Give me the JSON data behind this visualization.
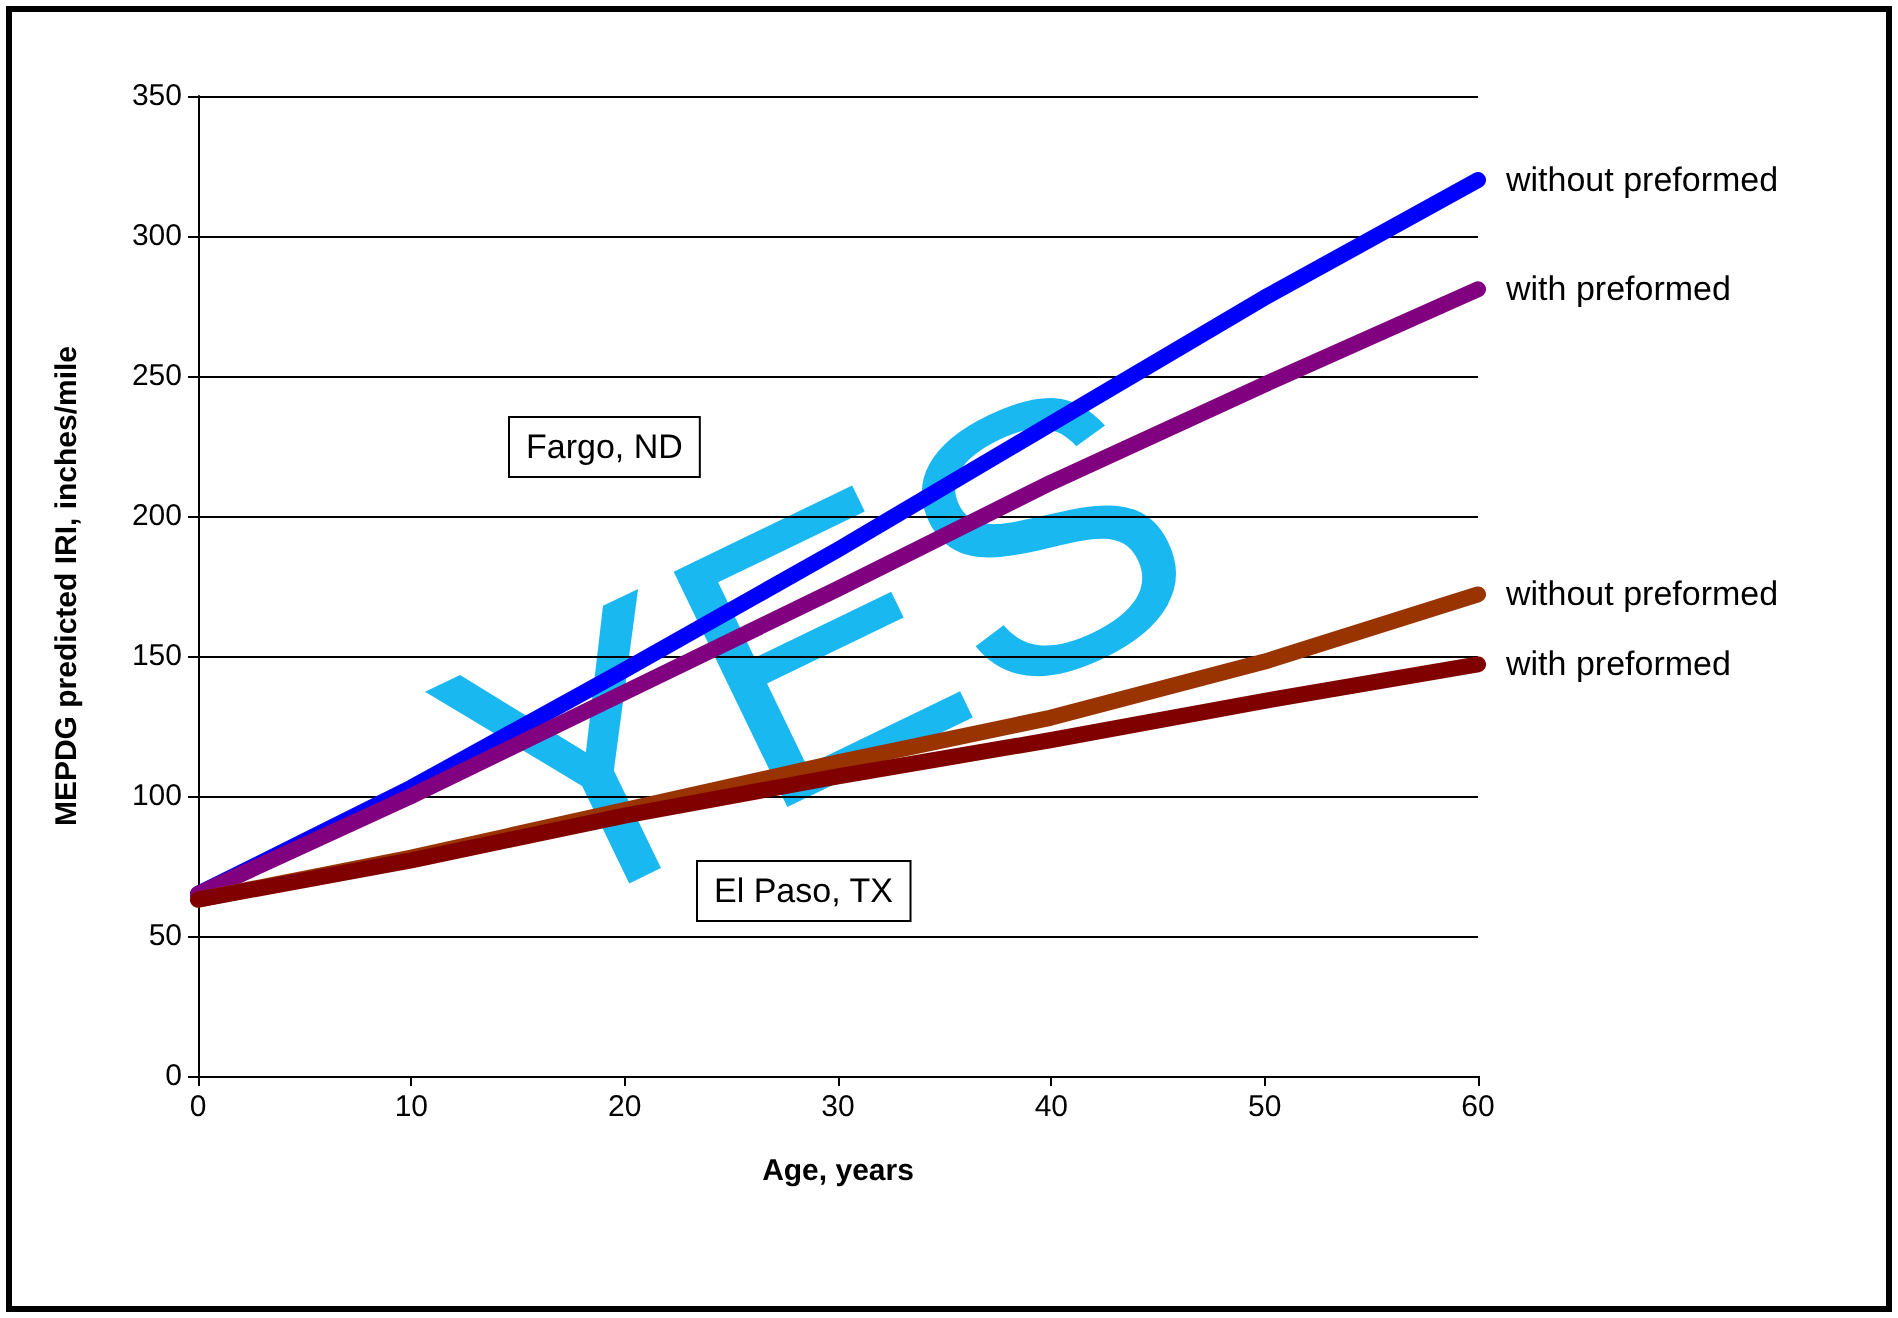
{
  "chart_data": {
    "type": "line",
    "xlabel": "Age, years",
    "ylabel": "MEPDG predicted IRI, inches/mile",
    "x": [
      0,
      10,
      20,
      30,
      40,
      50,
      60
    ],
    "series": [
      {
        "name": "without preformed",
        "color": "#0000ff",
        "values": [
          65,
          103,
          145,
          188,
          233,
          278,
          320
        ]
      },
      {
        "name": "with preformed",
        "color": "#800080",
        "values": [
          65,
          100,
          137,
          174,
          212,
          247,
          281
        ]
      },
      {
        "name": "without preformed",
        "color": "#993300",
        "values": [
          63,
          78,
          95,
          112,
          128,
          148,
          172
        ]
      },
      {
        "name": "with preformed",
        "color": "#800000",
        "values": [
          63,
          77,
          93,
          107,
          120,
          134,
          147
        ]
      }
    ],
    "annotations": [
      "Fargo, ND",
      "El Paso, TX",
      "YES"
    ],
    "xlim": [
      0,
      60
    ],
    "xticks": [
      0,
      10,
      20,
      30,
      40,
      50,
      60
    ],
    "ylim": [
      0,
      350
    ],
    "yticks": [
      0,
      50,
      100,
      150,
      200,
      250,
      300,
      350
    ],
    "grid": "y",
    "marker": "none",
    "line_style": "solid"
  }
}
